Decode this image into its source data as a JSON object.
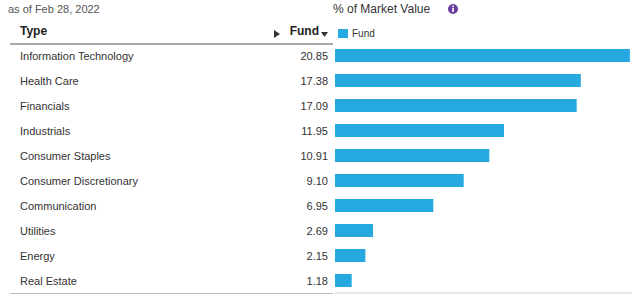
{
  "chart_data": {
    "type": "bar",
    "orientation": "horizontal",
    "title": "% of Market Value",
    "subtitle": "as of Feb 28, 2022",
    "y_label": "Type",
    "categories": [
      "Information Technology",
      "Health Care",
      "Financials",
      "Industrials",
      "Consumer Staples",
      "Consumer Discretionary",
      "Communication",
      "Utilities",
      "Energy",
      "Real Estate"
    ],
    "series": [
      {
        "name": "Fund",
        "color": "#25a9e0",
        "values": [
          20.85,
          17.38,
          17.09,
          11.95,
          10.91,
          9.1,
          6.95,
          2.69,
          2.15,
          1.18
        ],
        "value_labels": [
          "20.85",
          "17.38",
          "17.09",
          "11.95",
          "10.91",
          "9.10",
          "6.95",
          "2.69",
          "2.15",
          "1.18"
        ]
      }
    ],
    "xlim": [
      0,
      21
    ],
    "tick_labels": false,
    "data_labels": true,
    "grid": false,
    "legend": "top"
  }
}
